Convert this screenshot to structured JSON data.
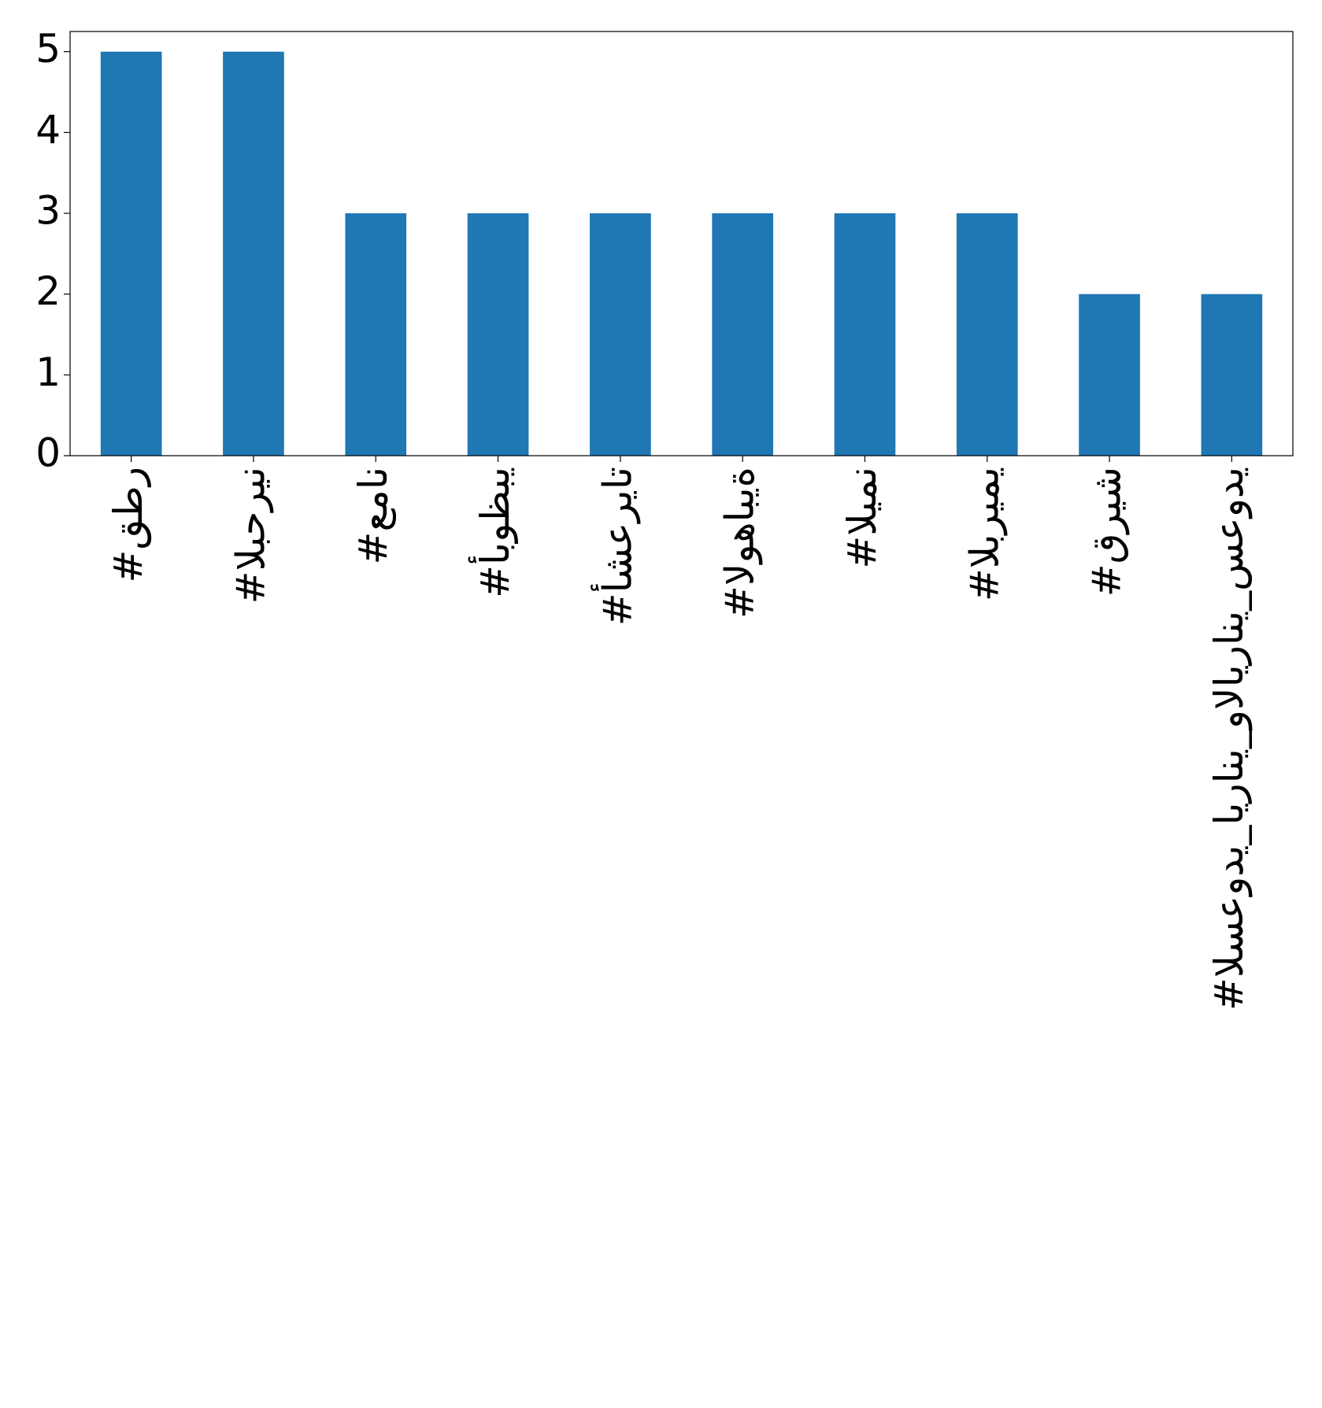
{
  "chart_data": {
    "type": "bar",
    "categories": [
      "#قطر",
      "#البحرين",
      "#عمان",
      "#أبوظبي",
      "#أشعريات",
      "#الوهابية",
      "#اليمن",
      "#البريمي",
      "#قريش",
      "#السعودي_ايراني_والايراني_سعودي"
    ],
    "values": [
      5,
      5,
      3,
      3,
      3,
      3,
      3,
      3,
      2,
      2
    ],
    "color": "#1f77b4",
    "ylim": [
      0,
      5.25
    ],
    "yticks": [
      0,
      1,
      2,
      3,
      4,
      5
    ]
  }
}
